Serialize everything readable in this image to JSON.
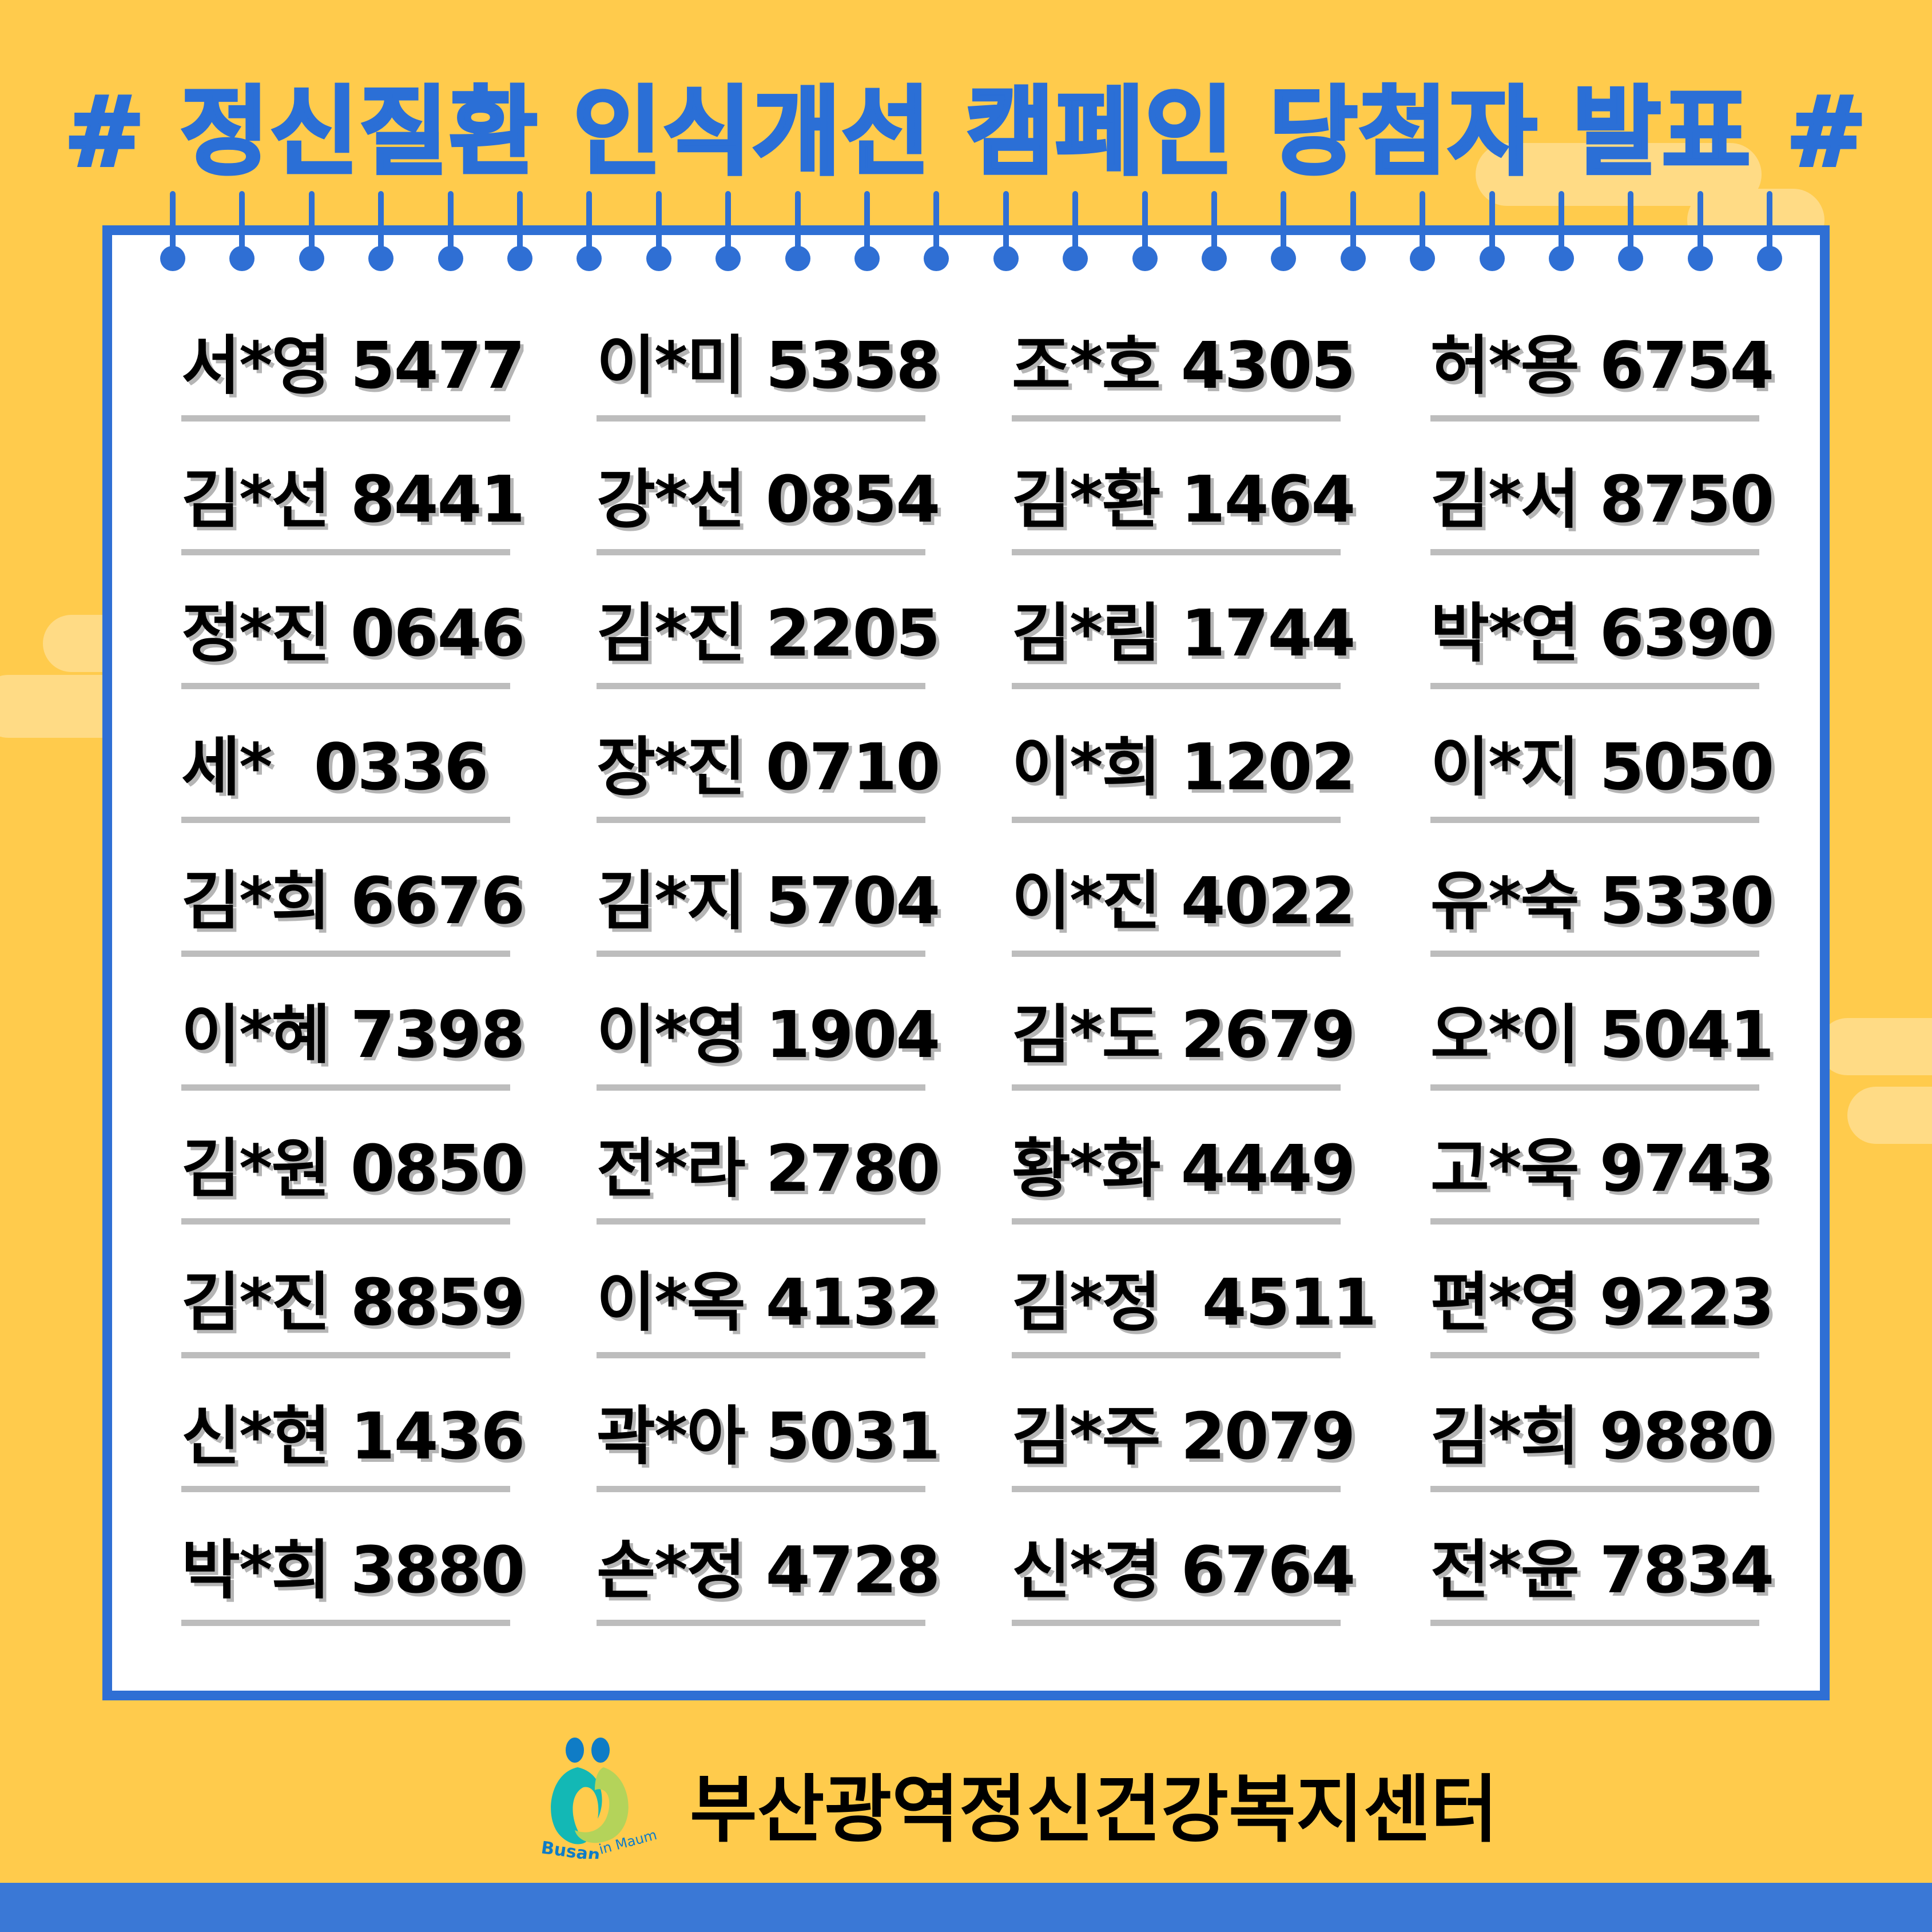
{
  "title": "# 정신질환 인식개선 캠페인 당첨자 발표 #",
  "colors": {
    "background": "#ffcb4c",
    "accent_blue": "#2f6fd4",
    "underline": "#bdbdbd"
  },
  "winners": [
    [
      "서*영 5477",
      "이*미 5358",
      "조*호 4305",
      "허*용 6754"
    ],
    [
      "김*선 8441",
      "강*선 0854",
      "김*환 1464",
      "김*서 8750"
    ],
    [
      "정*진 0646",
      "김*진 2205",
      "김*림 1744",
      "박*연 6390"
    ],
    [
      "세*  0336",
      "장*진 0710",
      "이*희 1202",
      "이*지 5050"
    ],
    [
      "김*희 6676",
      "김*지 5704",
      "이*진 4022",
      "유*숙 5330"
    ],
    [
      "이*혜 7398",
      "이*영 1904",
      "김*도 2679",
      "오*이 5041"
    ],
    [
      "김*원 0850",
      "전*라 2780",
      "황*화 4449",
      "고*욱 9743"
    ],
    [
      "김*진 8859",
      "이*옥 4132",
      "김*정  4511",
      "편*영 9223"
    ],
    [
      "신*현 1436",
      "곽*아 5031",
      "김*주 2079",
      "김*희 9880"
    ],
    [
      "박*희 3880",
      "손*정 4728",
      "신*경 6764",
      "전*윤 7834"
    ]
  ],
  "footer": {
    "organization": "부산광역정신건강복지센터",
    "logo_text": "Busan in Maum"
  }
}
